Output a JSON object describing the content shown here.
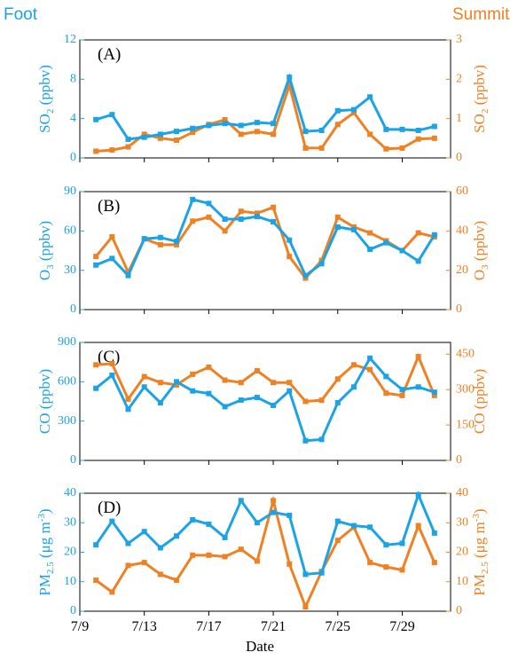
{
  "colors": {
    "foot": "#1ba3e6",
    "summit": "#ef8123"
  },
  "headers": {
    "left": "Foot",
    "right": "Summit"
  },
  "x_axis": {
    "label": "Date",
    "tick_labels": [
      "7/9",
      "7/13",
      "7/17",
      "7/21",
      "7/25",
      "7/29"
    ],
    "tick_days": [
      9,
      13,
      17,
      21,
      25,
      29
    ],
    "range": [
      9,
      32
    ]
  },
  "chart_data": [
    {
      "type": "line",
      "panel": "(A)",
      "species": "SO",
      "sub": "2",
      "unit": " (ppbv)",
      "x": [
        10,
        11,
        12,
        13,
        14,
        15,
        16,
        17,
        18,
        19,
        20,
        21,
        22,
        23,
        24,
        25,
        26,
        27,
        28,
        29,
        30,
        31
      ],
      "left": {
        "ylim": [
          0,
          12
        ],
        "ticks": [
          0,
          4,
          8,
          12
        ],
        "series": {
          "name": "Foot",
          "values": [
            3.9,
            4.4,
            1.9,
            2.1,
            2.4,
            2.7,
            3.0,
            3.3,
            3.5,
            3.3,
            3.6,
            3.5,
            8.2,
            2.7,
            2.8,
            4.8,
            4.9,
            6.2,
            2.9,
            2.9,
            2.8,
            3.2
          ]
        }
      },
      "right": {
        "ylim": [
          0,
          3
        ],
        "ticks": [
          0,
          1,
          2,
          3
        ],
        "series": {
          "name": "Summit",
          "values": [
            0.17,
            0.2,
            0.28,
            0.6,
            0.5,
            0.45,
            0.65,
            0.85,
            0.97,
            0.6,
            0.67,
            0.6,
            1.85,
            0.25,
            0.25,
            0.85,
            1.15,
            0.6,
            0.23,
            0.25,
            0.48,
            0.5
          ]
        }
      }
    },
    {
      "type": "line",
      "panel": "(B)",
      "species": "O",
      "sub": "3",
      "unit": " (ppbv)",
      "x": [
        10,
        11,
        12,
        13,
        14,
        15,
        16,
        17,
        18,
        19,
        20,
        21,
        22,
        23,
        24,
        25,
        26,
        27,
        28,
        29,
        30,
        31
      ],
      "left": {
        "ylim": [
          0,
          90
        ],
        "ticks": [
          0,
          30,
          60,
          90
        ],
        "series": {
          "name": "Foot",
          "values": [
            34,
            39,
            26,
            54,
            55,
            52,
            84,
            81,
            69,
            69,
            71,
            67,
            53,
            26,
            35,
            63,
            61,
            46,
            51,
            45,
            37,
            57
          ]
        }
      },
      "right": {
        "ylim": [
          0,
          60
        ],
        "ticks": [
          0,
          20,
          40,
          60
        ],
        "series": {
          "name": "Summit",
          "values": [
            27,
            37,
            19,
            36,
            33,
            33,
            45,
            47,
            40,
            50,
            49,
            52,
            27,
            16,
            25,
            47,
            42,
            39,
            35,
            30,
            39,
            37
          ]
        }
      }
    },
    {
      "type": "line",
      "panel": "(C)",
      "species": "CO",
      "sub": "",
      "unit": " (ppbv)",
      "x": [
        10,
        11,
        12,
        13,
        14,
        15,
        16,
        17,
        18,
        19,
        20,
        21,
        22,
        23,
        24,
        25,
        26,
        27,
        28,
        29,
        30,
        31
      ],
      "left": {
        "ylim": [
          0,
          900
        ],
        "ticks": [
          0,
          300,
          600,
          900
        ],
        "series": {
          "name": "Foot",
          "values": [
            550,
            650,
            390,
            560,
            440,
            600,
            530,
            510,
            410,
            460,
            480,
            420,
            530,
            150,
            160,
            440,
            560,
            780,
            640,
            540,
            560,
            520
          ]
        }
      },
      "right": {
        "ylim": [
          0,
          500
        ],
        "ticks": [
          0,
          150,
          300,
          450
        ],
        "series": {
          "name": "Summit",
          "values": [
            405,
            410,
            260,
            355,
            330,
            320,
            365,
            395,
            340,
            330,
            380,
            330,
            330,
            250,
            255,
            345,
            405,
            385,
            285,
            275,
            440,
            275
          ]
        }
      }
    },
    {
      "type": "line",
      "panel": "(D)",
      "species": "PM",
      "sub": "2.5",
      "unit": " (μg m",
      "unit_sup": "-3",
      "unit_end": ")",
      "x": [
        10,
        11,
        12,
        13,
        14,
        15,
        16,
        17,
        18,
        19,
        20,
        21,
        22,
        23,
        24,
        25,
        26,
        27,
        28,
        29,
        30,
        31
      ],
      "left": {
        "ylim": [
          0,
          40
        ],
        "ticks": [
          0,
          10,
          20,
          30,
          40
        ],
        "series": {
          "name": "Foot",
          "values": [
            22.5,
            30.5,
            23,
            27,
            21.5,
            25.5,
            31,
            29.5,
            25,
            37.5,
            30,
            33.5,
            32.5,
            12.5,
            13,
            30.5,
            29,
            28.5,
            22.5,
            23,
            39.5,
            26.5
          ]
        }
      },
      "right": {
        "ylim": [
          0,
          40
        ],
        "ticks": [
          0,
          10,
          20,
          30,
          40
        ],
        "series": {
          "name": "Summit",
          "values": [
            10.5,
            6.5,
            15.5,
            16.5,
            12.5,
            10.5,
            19,
            19,
            18.5,
            21,
            17,
            37.5,
            16,
            1.5,
            13.5,
            24,
            28.5,
            16.5,
            15,
            14,
            29,
            16.5
          ]
        }
      }
    }
  ]
}
